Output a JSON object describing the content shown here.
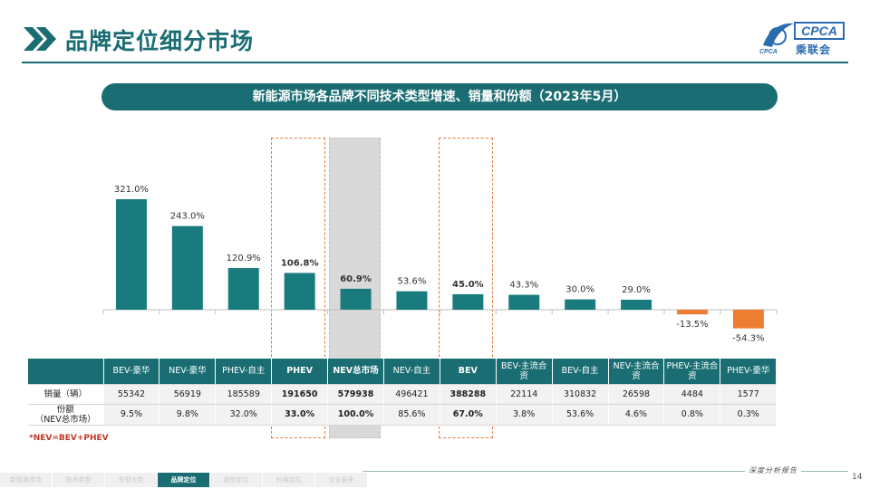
{
  "header": {
    "title": "品牌定位细分市场",
    "logo_text": "CPCA",
    "logo_cn": "乘联会",
    "logo_sub": "CPCA"
  },
  "subtitle": "新能源市场各品牌不同技术类型增速、销量和份额（2023年5月）",
  "chart_data": {
    "type": "bar",
    "categories": [
      "BEV-豪华",
      "NEV-豪华",
      "PHEV-自主",
      "PHEV",
      "NEV总市场",
      "NEV-自主",
      "BEV",
      "BEV-主流合资",
      "BEV-自主",
      "NEV-主流合资",
      "PHEV-主流合资",
      "PHEV-豪华"
    ],
    "values": [
      321.0,
      243.0,
      120.9,
      106.8,
      60.9,
      53.6,
      45.0,
      43.3,
      30.0,
      29.0,
      -13.5,
      -54.3
    ],
    "value_labels": [
      "321.0%",
      "243.0%",
      "120.9%",
      "106.8%",
      "60.9%",
      "53.6%",
      "45.0%",
      "43.3%",
      "30.0%",
      "29.0%",
      "-13.5%",
      "-54.3%"
    ],
    "bold_labels": [
      false,
      false,
      false,
      true,
      true,
      false,
      true,
      false,
      false,
      false,
      false,
      false
    ],
    "colors": {
      "positive": "#1a7b7e",
      "negative": "#ed7d31"
    },
    "ylim": [
      -70,
      340
    ],
    "highlight_dashed": [
      "PHEV",
      "BEV"
    ],
    "highlight_filled": [
      "NEV总市场"
    ],
    "grid": false,
    "legend": "none"
  },
  "table": {
    "row_labels": [
      "销量（辆）",
      "份额\n（NEV总市场）"
    ],
    "sales": [
      "55342",
      "56919",
      "185589",
      "191650",
      "579938",
      "496421",
      "388288",
      "22114",
      "310832",
      "26598",
      "4484",
      "1577"
    ],
    "share": [
      "9.5%",
      "9.8%",
      "32.0%",
      "33.0%",
      "100.0%",
      "85.6%",
      "67.0%",
      "3.8%",
      "53.6%",
      "4.6%",
      "0.8%",
      "0.3%"
    ]
  },
  "note": "*NEV=BEV+PHEV",
  "footer": {
    "nav": [
      "新能源市场",
      "技术类型",
      "车型大类",
      "品牌定位",
      "级别定位",
      "价格定位",
      "企业竞争"
    ],
    "active_index": 3,
    "brand": "深度分析报告",
    "page_number": "14"
  }
}
